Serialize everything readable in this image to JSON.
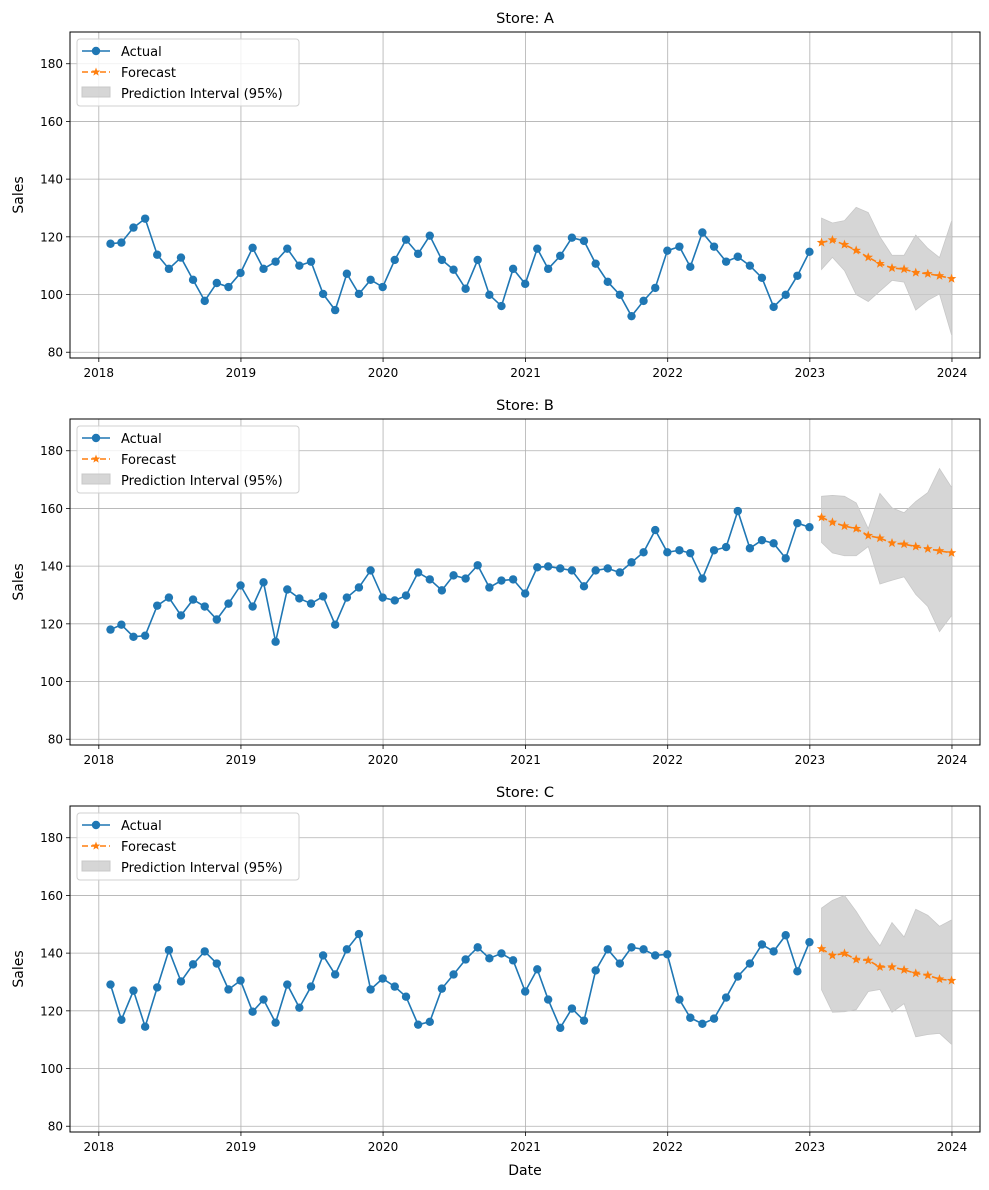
{
  "chart_data": [
    {
      "type": "line",
      "title": "Store: A",
      "xlabel": "",
      "ylabel": "Sales",
      "ylim": [
        78,
        191
      ],
      "xlim": [
        "2017-10-19",
        "2024-03-13"
      ],
      "grid": true,
      "legend_position": "top-left",
      "xticks": [
        "2018",
        "2019",
        "2020",
        "2021",
        "2022",
        "2023",
        "2024"
      ],
      "yticks": [
        80,
        100,
        120,
        140,
        160,
        180
      ],
      "actual": {
        "name": "Actual",
        "start": "2018-01-31",
        "freq": "monthly",
        "values": [
          117.6,
          118,
          123.2,
          126.3,
          113.8,
          108.9,
          112.8,
          105.1,
          97.8,
          104,
          102.6,
          107.5,
          116.2,
          108.9,
          111.4,
          115.9,
          110,
          111.4,
          100.2,
          94.6,
          107.2,
          100.2,
          105.1,
          102.6,
          112,
          119,
          114.1,
          120.4,
          112,
          108.6,
          102,
          112,
          99.9,
          96,
          108.9,
          103.7,
          115.9,
          108.9,
          113.4,
          119.7,
          118.6,
          110.7,
          104.4,
          99.9,
          92.5,
          97.8,
          102.3,
          115.2,
          116.6,
          109.6,
          121.5,
          116.6,
          111.4,
          113.1,
          110,
          105.8,
          95.7,
          99.9,
          106.5,
          114.8
        ]
      },
      "forecast": {
        "name": "Forecast",
        "start": "2023-01-31",
        "freq": "monthly",
        "values": [
          118,
          118.9,
          117.3,
          115.3,
          112.9,
          110.7,
          109.2,
          108.8,
          107.6,
          107.2,
          106.5,
          105.5
        ],
        "upper": [
          126.5,
          124.8,
          125.6,
          130.2,
          128.4,
          120,
          113.6,
          113.6,
          120.6,
          116,
          112.8,
          125.5
        ],
        "lower": [
          108.7,
          112.9,
          108.3,
          100,
          97.6,
          101.2,
          104.9,
          104.3,
          94.6,
          98,
          100.2,
          86
        ]
      }
    },
    {
      "type": "line",
      "title": "Store: B",
      "xlabel": "",
      "ylabel": "Sales",
      "ylim": [
        78,
        191
      ],
      "xlim": [
        "2017-10-19",
        "2024-03-13"
      ],
      "grid": true,
      "legend_position": "top-left",
      "xticks": [
        "2018",
        "2019",
        "2020",
        "2021",
        "2022",
        "2023",
        "2024"
      ],
      "yticks": [
        80,
        100,
        120,
        140,
        160,
        180
      ],
      "actual": {
        "name": "Actual",
        "start": "2018-01-31",
        "freq": "monthly",
        "values": [
          118,
          119.7,
          115.5,
          115.9,
          126.3,
          129.1,
          122.9,
          128.4,
          126,
          121.5,
          127,
          133.3,
          126,
          134.4,
          113.8,
          131.9,
          128.8,
          127,
          129.5,
          119.7,
          129.1,
          132.6,
          138.5,
          129.1,
          128.1,
          129.8,
          137.8,
          135.4,
          131.6,
          136.8,
          135.7,
          140.3,
          132.6,
          135,
          135.4,
          130.5,
          139.6,
          139.9,
          139.2,
          138.5,
          133,
          138.5,
          139.2,
          137.8,
          141.3,
          144.8,
          152.5,
          144.8,
          145.5,
          144.5,
          135.7,
          145.5,
          146.6,
          159.1,
          146.2,
          149,
          147.9,
          142.7,
          154.9,
          153.5
        ]
      },
      "forecast": {
        "name": "Forecast",
        "start": "2023-01-31",
        "freq": "monthly",
        "values": [
          156.9,
          155.2,
          153.9,
          153,
          150.6,
          149.7,
          148,
          147.6,
          146.8,
          146,
          145.3,
          144.6
        ],
        "upper": [
          164.2,
          164.5,
          164.2,
          161.9,
          153,
          165.2,
          160.2,
          158.5,
          162.4,
          165.5,
          173.8,
          167.3
        ],
        "lower": [
          148.2,
          144.6,
          143.6,
          143.6,
          146.8,
          133.8,
          135.1,
          136.3,
          130.2,
          126,
          117.3,
          122.9
        ]
      }
    },
    {
      "type": "line",
      "title": "Store: C",
      "xlabel": "Date",
      "ylabel": "Sales",
      "ylim": [
        78,
        191
      ],
      "xlim": [
        "2017-10-19",
        "2024-03-13"
      ],
      "grid": true,
      "legend_position": "top-left",
      "xticks": [
        "2018",
        "2019",
        "2020",
        "2021",
        "2022",
        "2023",
        "2024"
      ],
      "yticks": [
        80,
        100,
        120,
        140,
        160,
        180
      ],
      "actual": {
        "name": "Actual",
        "start": "2018-01-31",
        "freq": "monthly",
        "values": [
          129.1,
          116.9,
          127,
          114.5,
          128.1,
          141,
          130.2,
          136.1,
          140.6,
          136.4,
          127.4,
          130.5,
          119.7,
          123.9,
          115.9,
          129.1,
          121.1,
          128.4,
          139.2,
          132.6,
          141.3,
          146.6,
          127.4,
          131.2,
          128.4,
          124.9,
          115.2,
          116.2,
          127.7,
          132.6,
          137.8,
          142,
          138.2,
          139.9,
          137.5,
          126.7,
          134.4,
          123.9,
          114.1,
          120.8,
          116.6,
          134,
          141.3,
          136.4,
          142,
          141.3,
          139.2,
          139.6,
          123.9,
          117.6,
          115.5,
          117.3,
          124.6,
          131.9,
          136.4,
          143,
          140.6,
          146.2,
          133.7,
          143.8
        ]
      },
      "forecast": {
        "name": "Forecast",
        "start": "2023-01-31",
        "freq": "monthly",
        "values": [
          141.5,
          139.2,
          139.9,
          137.8,
          137.5,
          135.2,
          135.2,
          134.2,
          133,
          132.3,
          131,
          130.5
        ],
        "upper": [
          155.6,
          158.3,
          160,
          154.5,
          147.9,
          142.5,
          150.6,
          145.6,
          155.2,
          153.1,
          149.3,
          151.5
        ],
        "lower": [
          127.3,
          119.5,
          119.7,
          120.4,
          126.7,
          127.4,
          119.5,
          122.5,
          111,
          111.8,
          112.2,
          108.4
        ]
      }
    }
  ],
  "legend": {
    "actual": "Actual",
    "forecast": "Forecast",
    "interval": "Prediction Interval (95%)"
  },
  "colors": {
    "actual": "#1f77b4",
    "forecast": "#ff7f0e",
    "interval": "#c8c8c8",
    "grid": "#b0b0b0"
  }
}
